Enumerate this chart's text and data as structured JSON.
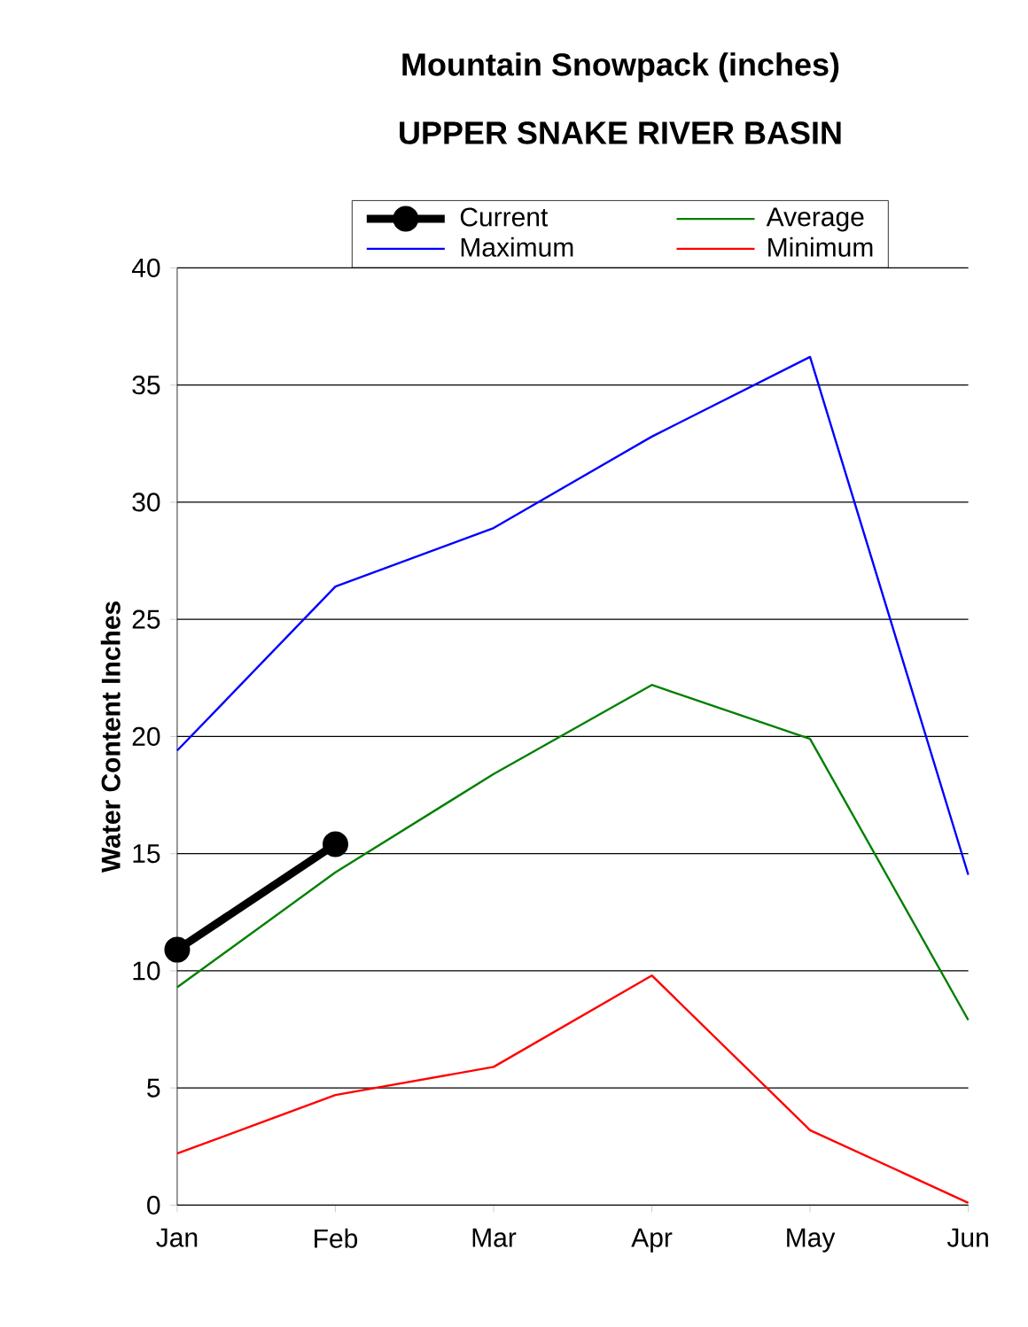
{
  "chart_data": {
    "type": "line",
    "title": "Mountain Snowpack (inches)",
    "subtitle": "UPPER SNAKE RIVER BASIN",
    "ylabel": "Water Content Inches",
    "categories": [
      "Jan",
      "Feb",
      "Mar",
      "Apr",
      "May",
      "Jun"
    ],
    "series": [
      {
        "name": "Current",
        "color": "#000000",
        "marker": "circle",
        "values": [
          10.9,
          15.4,
          null,
          null,
          null,
          null
        ]
      },
      {
        "name": "Average",
        "color": "#008000",
        "values": [
          9.3,
          14.2,
          18.4,
          22.2,
          19.9,
          7.9
        ]
      },
      {
        "name": "Maximum",
        "color": "#0000ff",
        "values": [
          19.4,
          26.4,
          28.9,
          32.8,
          36.2,
          14.1
        ]
      },
      {
        "name": "Minimum",
        "color": "#ff0000",
        "values": [
          2.2,
          4.7,
          5.9,
          9.8,
          3.2,
          0.1
        ]
      }
    ],
    "ylim": [
      0,
      40
    ],
    "yticks": [
      0,
      5,
      10,
      15,
      20,
      25,
      30,
      35,
      40
    ],
    "grid": "y",
    "legend": "top"
  }
}
